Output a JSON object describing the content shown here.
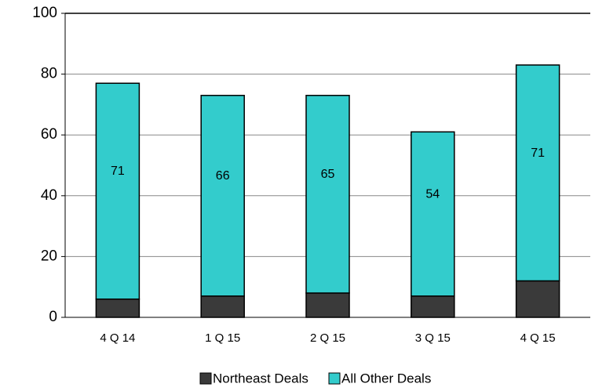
{
  "chart_data": {
    "type": "stacked_bar",
    "categories": [
      "4 Q 14",
      "1 Q 15",
      "2 Q 15",
      "3 Q 15",
      "4 Q 15"
    ],
    "series": [
      {
        "name": "Northeast Deals",
        "color": "#3a3a3a",
        "values": [
          6,
          7,
          8,
          7,
          12
        ]
      },
      {
        "name": "All Other Deals",
        "color": "#33cccc",
        "values": [
          71,
          66,
          65,
          54,
          71
        ]
      }
    ],
    "ylim": [
      0,
      100
    ],
    "yticks": [
      0,
      20,
      40,
      60,
      80,
      100
    ],
    "grid": true,
    "legend": "bottom"
  }
}
